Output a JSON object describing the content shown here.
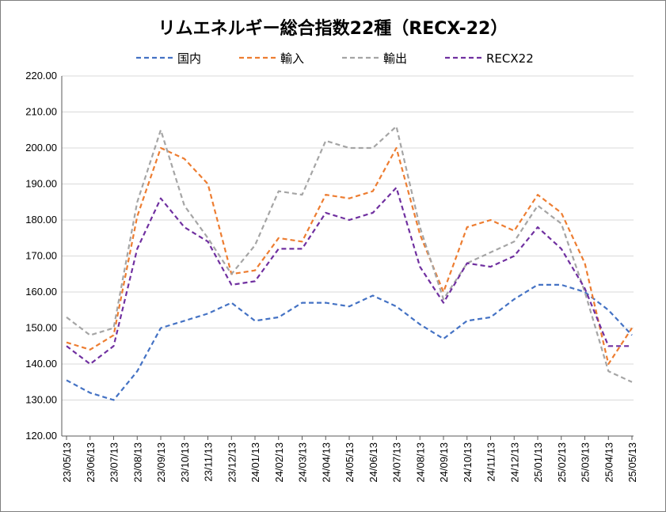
{
  "chart_data": {
    "type": "line",
    "title": "リムエネルギー総合指数22種（RECX-22）",
    "ylim": [
      120,
      220
    ],
    "ytick_labels": [
      "120.00",
      "130.00",
      "140.00",
      "150.00",
      "160.00",
      "170.00",
      "180.00",
      "190.00",
      "200.00",
      "210.00",
      "220.00"
    ],
    "x": [
      "23/05/13",
      "23/06/13",
      "23/07/13",
      "23/08/13",
      "23/09/13",
      "23/10/13",
      "23/11/13",
      "23/12/13",
      "24/01/13",
      "24/02/13",
      "24/03/13",
      "24/04/13",
      "24/05/13",
      "24/06/13",
      "24/07/13",
      "24/08/13",
      "24/09/13",
      "24/10/13",
      "24/11/13",
      "24/12/13",
      "25/01/13",
      "25/02/13",
      "25/03/13",
      "25/04/13",
      "25/05/13"
    ],
    "grid": "horizontal",
    "legend_position": "top",
    "series": [
      {
        "name": "国内",
        "color": "#4472C4",
        "values": [
          135.5,
          132,
          130,
          138,
          150,
          152,
          154,
          157,
          152,
          153,
          157,
          157,
          156,
          159,
          156,
          151,
          147,
          152,
          153,
          158,
          162,
          162,
          160,
          155,
          148
        ]
      },
      {
        "name": "輸入",
        "color": "#ED7D31",
        "values": [
          146,
          144,
          148,
          181,
          200,
          197,
          190,
          165,
          166,
          175,
          174,
          187,
          186,
          188,
          200,
          176,
          160,
          178,
          180,
          177,
          187,
          182,
          168,
          140,
          150
        ]
      },
      {
        "name": "輸出",
        "color": "#A5A5A5",
        "values": [
          153,
          148,
          150,
          185,
          205,
          184,
          175,
          165,
          173,
          188,
          187,
          202,
          200,
          200,
          206,
          178,
          158,
          168,
          171,
          174,
          184,
          179,
          160,
          138,
          135
        ]
      },
      {
        "name": "RECX22",
        "color": "#7030A0",
        "values": [
          145,
          140,
          145,
          172,
          186,
          178,
          174,
          162,
          163,
          172,
          172,
          182,
          180,
          182,
          189,
          167,
          157,
          168,
          167,
          170,
          178,
          172,
          161,
          145,
          145
        ]
      }
    ]
  }
}
